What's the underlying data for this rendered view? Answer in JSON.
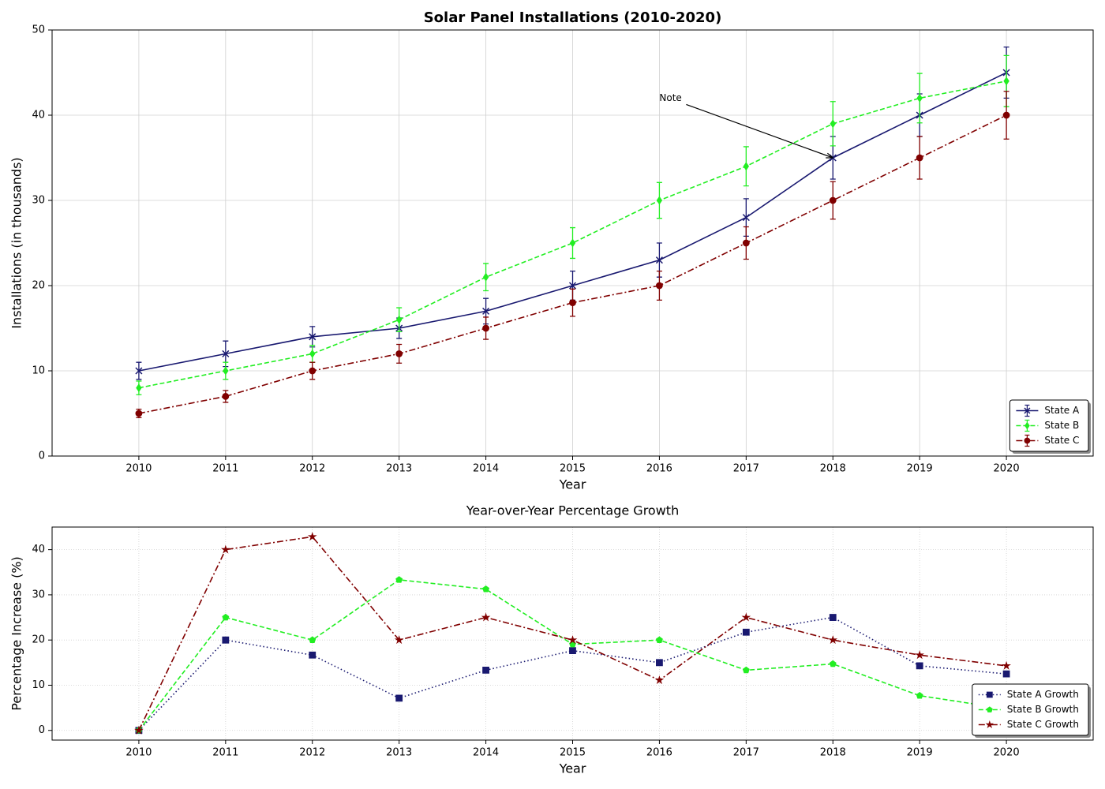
{
  "chart_data": [
    {
      "type": "line",
      "title": "Solar Panel Installations (2010-2020)",
      "title_weight": "bold",
      "xlabel": "Year",
      "ylabel": "Installations (in thousands)",
      "x": [
        2010,
        2011,
        2012,
        2013,
        2014,
        2015,
        2016,
        2017,
        2018,
        2019,
        2020
      ],
      "series": [
        {
          "name": "State A",
          "color": "#191970",
          "linestyle": "solid",
          "marker": "x",
          "values": [
            10,
            12,
            14,
            15,
            17,
            20,
            23,
            28,
            35,
            40,
            45
          ],
          "errors": [
            1,
            1.5,
            1.2,
            1.2,
            1.5,
            1.7,
            2,
            2.2,
            2.5,
            2.5,
            3
          ]
        },
        {
          "name": "State B",
          "color": "#22ee22",
          "linestyle": "dashed",
          "marker": "diamond",
          "values": [
            8,
            10,
            12,
            16,
            21,
            25,
            30,
            34,
            39,
            42,
            44
          ],
          "errors": [
            0.8,
            1,
            1,
            1.4,
            1.6,
            1.8,
            2.1,
            2.3,
            2.6,
            2.9,
            3
          ]
        },
        {
          "name": "State C",
          "color": "#800000",
          "linestyle": "dashdot",
          "marker": "circle",
          "values": [
            5,
            7,
            10,
            12,
            15,
            18,
            20,
            25,
            30,
            35,
            40
          ],
          "errors": [
            0.5,
            0.7,
            1,
            1.1,
            1.3,
            1.6,
            1.7,
            1.9,
            2.2,
            2.5,
            2.8
          ]
        }
      ],
      "xlim": [
        2009,
        2021
      ],
      "ylim": [
        0,
        50
      ],
      "xticks": [
        2010,
        2011,
        2012,
        2013,
        2014,
        2015,
        2016,
        2017,
        2018,
        2019,
        2020
      ],
      "yticks": [
        0,
        10,
        20,
        30,
        40,
        50
      ],
      "grid": true,
      "grid_style": "solid",
      "legend": "lower right",
      "annotations": [
        {
          "text": "Note",
          "x": 2018,
          "y": 35,
          "text_x": 2016,
          "text_y": 42
        }
      ]
    },
    {
      "type": "line",
      "title": "Year-over-Year Percentage Growth",
      "title_weight": "normal",
      "xlabel": "Year",
      "ylabel": "Percentage Increase (%)",
      "x": [
        2010,
        2011,
        2012,
        2013,
        2014,
        2015,
        2016,
        2017,
        2018,
        2019,
        2020
      ],
      "series": [
        {
          "name": "State A Growth",
          "color": "#191970",
          "linestyle": "dotted",
          "marker": "square",
          "values": [
            0,
            20,
            16.67,
            7.14,
            13.33,
            17.65,
            15,
            21.74,
            25,
            14.29,
            12.5
          ]
        },
        {
          "name": "State B Growth",
          "color": "#22ee22",
          "linestyle": "dashed",
          "marker": "pentagon",
          "values": [
            0,
            25,
            20,
            33.33,
            31.25,
            19.05,
            20,
            13.33,
            14.71,
            7.69,
            4.76
          ]
        },
        {
          "name": "State C Growth",
          "color": "#800000",
          "linestyle": "dashdot",
          "marker": "star",
          "values": [
            0,
            40,
            42.86,
            20,
            25,
            20,
            11.11,
            25,
            20,
            16.67,
            14.29
          ]
        }
      ],
      "xlim": [
        2009,
        2021
      ],
      "ylim": [
        -2.14,
        45
      ],
      "xticks": [
        2010,
        2011,
        2012,
        2013,
        2014,
        2015,
        2016,
        2017,
        2018,
        2019,
        2020
      ],
      "yticks": [
        0,
        10,
        20,
        30,
        40
      ],
      "grid": true,
      "grid_style": "dotted",
      "legend": "lower right"
    }
  ]
}
